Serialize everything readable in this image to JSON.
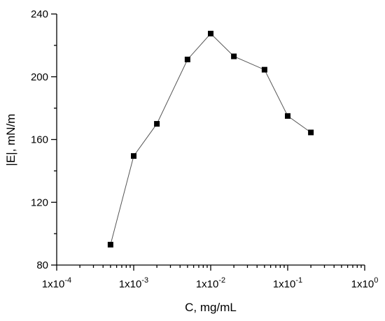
{
  "chart_data": {
    "type": "scatter",
    "title": "",
    "xlabel": "C, mg/mL",
    "ylabel": "|E|, mN/m",
    "xscale": "log",
    "xlim": [
      0.0001,
      1
    ],
    "ylim": [
      80,
      240
    ],
    "grid": false,
    "legend": "none",
    "x_tick_labels": [
      {
        "value": 0.0001,
        "mantissa": "1x10",
        "exponent": "-4"
      },
      {
        "value": 0.001,
        "mantissa": "1x10",
        "exponent": "-3"
      },
      {
        "value": 0.01,
        "mantissa": "1x10",
        "exponent": "-2"
      },
      {
        "value": 0.1,
        "mantissa": "1x10",
        "exponent": "-1"
      },
      {
        "value": 1,
        "mantissa": "1x10",
        "exponent": "0"
      }
    ],
    "y_tick_labels": [
      80,
      120,
      160,
      200,
      240
    ],
    "series": [
      {
        "x": [
          0.0005,
          0.001,
          0.002,
          0.005,
          0.01,
          0.02,
          0.05,
          0.1,
          0.2
        ],
        "y": [
          93,
          149.5,
          170,
          211,
          227.5,
          213,
          204.5,
          175,
          164.5
        ],
        "color": "#000000",
        "marker": "square",
        "line_color": "#555555"
      }
    ]
  }
}
